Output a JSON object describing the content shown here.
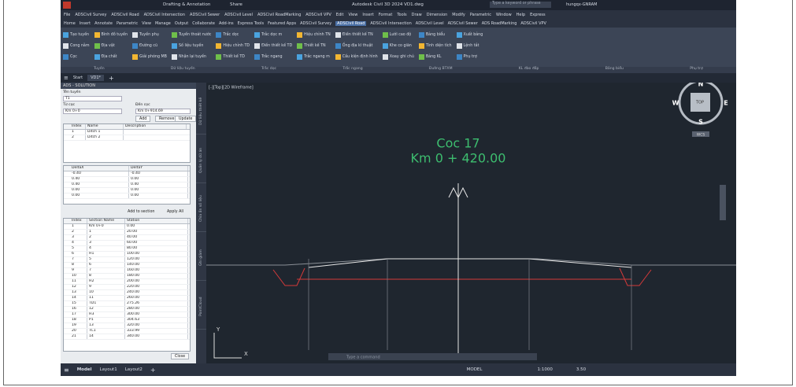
{
  "title_bar": {
    "workspace": "Drafting & Annotation",
    "share": "Share",
    "title": "Autodesk Civil 3D 2024   VD1.dwg",
    "search": "Type a keyword or phrase",
    "user": "hungqx-GNRAM"
  },
  "menu": [
    "File",
    "ADSCivil Survey",
    "ADSCivil Road",
    "ADSCivil Intersection",
    "ADSCivil Sewer",
    "ADSCivil Level",
    "ADSCivil RoadMarking",
    "ADSCivil VPV",
    "Edit",
    "View",
    "Insert",
    "Format",
    "Tools",
    "Draw",
    "Dimension",
    "Modify",
    "Parametric",
    "Window",
    "Help",
    "Express"
  ],
  "ribbon_tabs": [
    "Home",
    "Insert",
    "Annotate",
    "Parametric",
    "View",
    "Manage",
    "Output",
    "Collaborate",
    "Add-ins",
    "Express Tools",
    "Featured Apps",
    "ADSCivil Survey",
    "ADSCivil Road",
    "ADSCivil Intersection",
    "ADSCivil Level",
    "ADSCivil Sewer",
    "ADS RoadMarking",
    "ADSCivil VPV"
  ],
  "active_tab": 12,
  "ribbon_buttons": [
    "Tạo tuyến",
    "Cong nằm",
    "Cọc",
    "Bình đồ tuyến",
    "Địa vật",
    "Địa chất",
    "Tuyến phụ",
    "Đường cũ",
    "Giải phóng MB",
    "Tuyến thoát nước",
    "Số liệu tuyến",
    "Nhận lại tuyến",
    "Trắc dọc",
    "Hiệu chỉnh TD",
    "Thiết kế TD",
    "Trắc dọc m",
    "Điền thiết kế TD",
    "Trắc ngang",
    "Hiệu chỉnh TN",
    "Thiết kế TN",
    "Trắc ngang m",
    "Điền thiết kế TN",
    "Ống địa kĩ thuật",
    "Cấu kiện định hình",
    "Lưới cao độ",
    "Khe co giãn",
    "Xoay ghi chú",
    "Bảng biểu",
    "Tính diện tích",
    "Bảng KL",
    "Xuất bảng",
    "Lệnh tắt",
    "Phụ trợ"
  ],
  "ribbon_panels": [
    "Tuyến",
    "Dữ liệu tuyến",
    "Trắc dọc",
    "Trắc ngang",
    "Đường BTXM",
    "KL đào đắp",
    "Bảng biểu",
    "Phụ trợ"
  ],
  "doc_tabs": [
    "Start",
    "VD1*"
  ],
  "panel": {
    "title": "ADS - SOLUTION",
    "route_label": "Tên tuyến",
    "route": "T1",
    "from_label": "Từ cọc",
    "from": "Km 0+0",
    "to_label": "Đến cọc",
    "to": "Km 0+914.69",
    "buttons": [
      "Add",
      "Remove",
      "Update"
    ],
    "ditch_table": {
      "columns": [
        "Index",
        "Name",
        "Description"
      ],
      "rows": [
        [
          "1",
          "Ditch 1"
        ],
        [
          "2",
          "Ditch 2"
        ]
      ]
    },
    "offset_table": {
      "columns": [
        "DeltaX",
        "DeltaY"
      ],
      "rows": [
        [
          "-0.40",
          "-0.40"
        ],
        [
          "0.40",
          "0.00"
        ],
        [
          "0.40",
          "0.40"
        ],
        [
          "0.00",
          "0.00"
        ],
        [
          "0.00",
          "0.00"
        ]
      ]
    },
    "section_buttons": [
      "Add to section",
      "Apply All"
    ],
    "section_table": {
      "columns": [
        "Index",
        "Section Name",
        "Station"
      ],
      "rows": [
        [
          "1",
          "Km 0+0",
          "0.00"
        ],
        [
          "2",
          "1",
          "20.00"
        ],
        [
          "3",
          "2",
          "40.00"
        ],
        [
          "4",
          "3",
          "60.00"
        ],
        [
          "5",
          "4",
          "80.00"
        ],
        [
          "6",
          "H1",
          "100.00"
        ],
        [
          "7",
          "5",
          "120.00"
        ],
        [
          "8",
          "6",
          "140.00"
        ],
        [
          "9",
          "7",
          "160.00"
        ],
        [
          "10",
          "8",
          "180.00"
        ],
        [
          "11",
          "H2",
          "200.00"
        ],
        [
          "12",
          "9",
          "220.00"
        ],
        [
          "13",
          "10",
          "240.00"
        ],
        [
          "14",
          "11",
          "260.00"
        ],
        [
          "15",
          "TD1",
          "275.26"
        ],
        [
          "16",
          "12",
          "280.00"
        ],
        [
          "17",
          "H3",
          "300.00"
        ],
        [
          "18",
          "P1",
          "304.63"
        ],
        [
          "19",
          "13",
          "320.00"
        ],
        [
          "20",
          "TC1",
          "333.99"
        ],
        [
          "21",
          "14",
          "340.00"
        ]
      ]
    },
    "close": "Close"
  },
  "side_tabs": [
    "Dữ liệu thiết kế",
    "Quản lý dữ án",
    "Chia ẩn số liệu",
    "Ghi giảm",
    "PointCloud"
  ],
  "viewport": {
    "label": "[-][Top][2D Wireframe]",
    "station_name": "Coc 17",
    "station": "Km 0 + 420.00",
    "compass": {
      "n": "N",
      "s": "S",
      "e": "E",
      "w": "W",
      "top": "TOP"
    },
    "wcs": "WCS",
    "axis_y": "Y",
    "axis_x": "X"
  },
  "command": "Type a command",
  "layout_tabs": [
    "Model",
    "Layout1",
    "Layout2"
  ],
  "status": {
    "model": "MODEL",
    "scale": "1:1000",
    "annotation": "3.50"
  }
}
